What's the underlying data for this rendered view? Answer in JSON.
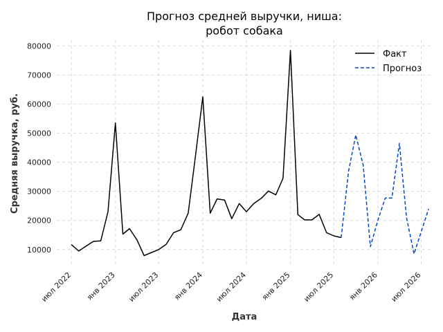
{
  "chart_data": {
    "type": "line",
    "title": [
      "Прогноз средней выручки, ниша:",
      "робот собака"
    ],
    "xlabel": "Дата",
    "ylabel": "Средняя выручка, руб.",
    "ylim": [
      4000,
      82000
    ],
    "xlim": [
      "2022-05-01",
      "2026-08-15"
    ],
    "grid": true,
    "legend": "top-right",
    "x_ticks": [
      {
        "date": "2022-07-01",
        "label": "июл 2022"
      },
      {
        "date": "2023-01-01",
        "label": "янв 2023"
      },
      {
        "date": "2023-07-01",
        "label": "июл 2023"
      },
      {
        "date": "2024-01-01",
        "label": "янв 2024"
      },
      {
        "date": "2024-07-01",
        "label": "июл 2024"
      },
      {
        "date": "2025-01-01",
        "label": "янв 2025"
      },
      {
        "date": "2025-07-01",
        "label": "июл 2025"
      },
      {
        "date": "2026-01-01",
        "label": "янв 2026"
      },
      {
        "date": "2026-07-01",
        "label": "июл 2026"
      }
    ],
    "y_ticks": [
      10000,
      20000,
      30000,
      40000,
      50000,
      60000,
      70000,
      80000
    ],
    "series": [
      {
        "name": "Факт",
        "color": "#000000",
        "dash": "solid",
        "x": [
          "2022-07-01",
          "2022-08-01",
          "2022-09-01",
          "2022-10-01",
          "2022-11-01",
          "2022-12-01",
          "2023-01-01",
          "2023-02-01",
          "2023-03-01",
          "2023-04-01",
          "2023-05-01",
          "2023-06-01",
          "2023-07-01",
          "2023-08-01",
          "2023-09-01",
          "2023-10-01",
          "2023-11-01",
          "2023-12-01",
          "2024-01-01",
          "2024-02-01",
          "2024-03-01",
          "2024-04-01",
          "2024-05-01",
          "2024-06-01",
          "2024-07-01",
          "2024-08-01",
          "2024-09-01",
          "2024-10-01",
          "2024-11-01",
          "2024-12-01",
          "2025-01-01",
          "2025-02-01",
          "2025-03-01",
          "2025-04-01",
          "2025-05-01",
          "2025-06-01",
          "2025-07-01",
          "2025-08-01"
        ],
        "values": [
          11700,
          9500,
          11200,
          12800,
          13000,
          23000,
          53500,
          15300,
          17200,
          13300,
          7900,
          9000,
          10000,
          11800,
          15800,
          16800,
          22500,
          42000,
          62500,
          22500,
          27400,
          27000,
          20600,
          25800,
          23000,
          25800,
          27600,
          30100,
          28800,
          34500,
          78500,
          22000,
          20200,
          20200,
          22100,
          15800,
          14700,
          14100
        ]
      },
      {
        "name": "Прогноз",
        "color": "#0044cc",
        "dash": "dashed",
        "x": [
          "2025-08-01",
          "2025-09-01",
          "2025-10-01",
          "2025-11-01",
          "2025-12-01",
          "2026-01-01",
          "2026-02-01",
          "2026-03-01",
          "2026-04-01",
          "2026-05-01",
          "2026-06-01",
          "2026-07-01",
          "2026-08-01"
        ],
        "values": [
          14100,
          37000,
          49400,
          39000,
          11000,
          20000,
          27700,
          27700,
          46500,
          21000,
          8500,
          16000,
          24000
        ]
      }
    ]
  }
}
